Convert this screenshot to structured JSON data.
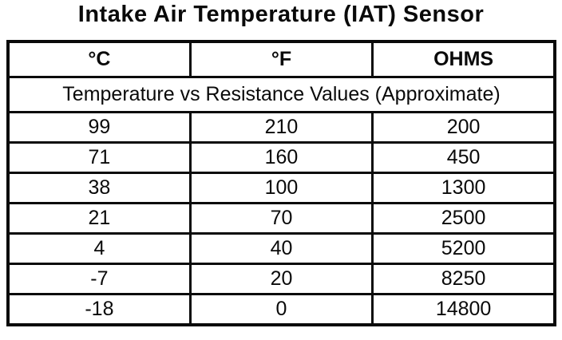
{
  "title": "Intake Air Temperature (IAT) Sensor",
  "table": {
    "headers": [
      "°C",
      "°F",
      "OHMS"
    ],
    "subtitle": "Temperature vs Resistance Values (Approximate)",
    "rows": [
      [
        "99",
        "210",
        "200"
      ],
      [
        "71",
        "160",
        "450"
      ],
      [
        "38",
        "100",
        "1300"
      ],
      [
        "21",
        "70",
        "2500"
      ],
      [
        "4",
        "40",
        "5200"
      ],
      [
        "-7",
        "20",
        "8250"
      ],
      [
        "-18",
        "0",
        "14800"
      ]
    ]
  },
  "chart_data": {
    "type": "table",
    "title": "Intake Air Temperature (IAT) Sensor",
    "subtitle": "Temperature vs Resistance Values (Approximate)",
    "columns": [
      "°C",
      "°F",
      "OHMS"
    ],
    "rows": [
      [
        99,
        210,
        200
      ],
      [
        71,
        160,
        450
      ],
      [
        38,
        100,
        1300
      ],
      [
        21,
        70,
        2500
      ],
      [
        4,
        40,
        5200
      ],
      [
        -7,
        20,
        8250
      ],
      [
        -18,
        0,
        14800
      ]
    ]
  },
  "colors": {
    "ink": "#0a0a0a",
    "paper": "#ffffff"
  }
}
